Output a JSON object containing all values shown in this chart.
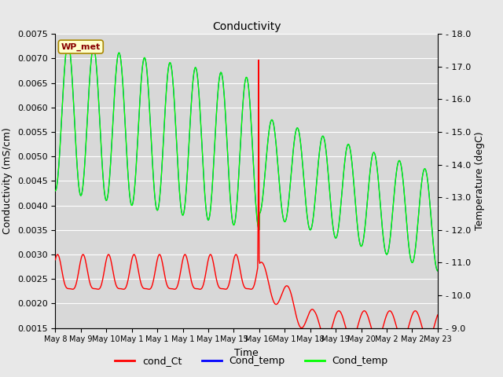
{
  "title": "Conductivity",
  "xlabel": "Time",
  "ylabel_left": "Conductivity (mS/cm)",
  "ylabel_right": "Temperature (degC)",
  "ylim_left": [
    0.0015,
    0.0075
  ],
  "ylim_right": [
    9.0,
    18.0
  ],
  "yticks_left": [
    0.0015,
    0.002,
    0.0025,
    0.003,
    0.0035,
    0.004,
    0.0045,
    0.005,
    0.0055,
    0.006,
    0.0065,
    0.007,
    0.0075
  ],
  "yticks_right": [
    9.0,
    10.0,
    11.0,
    12.0,
    13.0,
    14.0,
    15.0,
    16.0,
    17.0,
    18.0
  ],
  "fig_bg_color": "#e8e8e8",
  "plot_bg_color": "#d8d8d8",
  "grid_color": "#ffffff",
  "legend_labels": [
    "cond_Ct",
    "Cond_temp",
    "Cond_temp"
  ],
  "legend_colors": [
    "#ff0000",
    "#0000ff",
    "#00ff00"
  ],
  "wp_met_label": "WP_met",
  "wp_met_bg": "#ffffcc",
  "wp_met_border": "#aa8800",
  "wp_met_text_color": "#880000",
  "x_tick_labels": [
    "May 8",
    "May 9",
    "May 10",
    "May 1",
    "May 1",
    "May 1",
    "May 1",
    "May 15",
    "May 16",
    "May 1",
    "May 18",
    "May 19",
    "May 20",
    "May 2",
    "May 2",
    "May 23"
  ],
  "title_fontsize": 10,
  "axis_fontsize": 9,
  "tick_fontsize": 8
}
